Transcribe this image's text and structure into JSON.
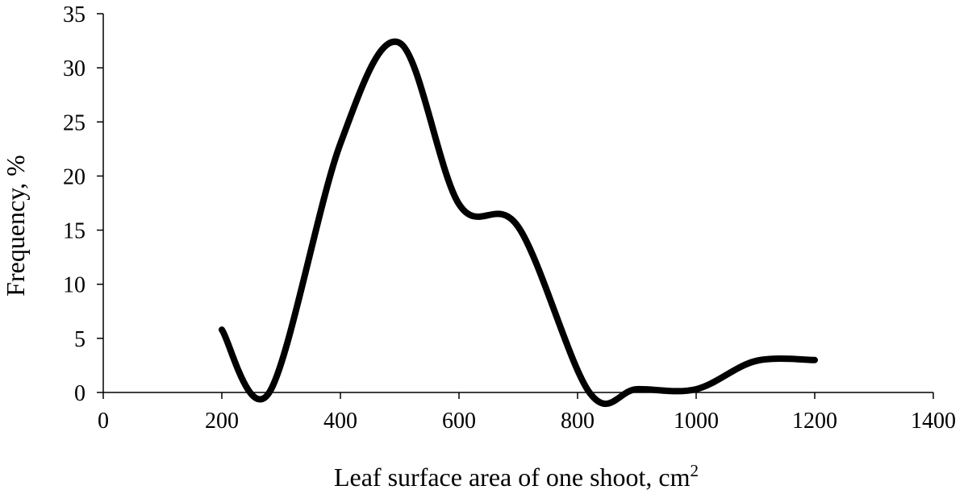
{
  "chart_data": {
    "type": "line",
    "smooth": true,
    "title": "",
    "xlabel": "Leaf surface area of one shoot, cm",
    "xlabel_superscript": "2",
    "ylabel": "Frequency, %",
    "xlim": [
      0,
      1400
    ],
    "ylim": [
      0,
      35
    ],
    "xticks": [
      0,
      200,
      400,
      600,
      800,
      1000,
      1200,
      1400
    ],
    "yticks": [
      0,
      5,
      10,
      15,
      20,
      25,
      30,
      35
    ],
    "grid": false,
    "legend": "none",
    "series": [
      {
        "color": "#000000",
        "x": [
          200,
          280,
          400,
          500,
          600,
          700,
          820,
          900,
          1000,
          1100,
          1200
        ],
        "y": [
          5.8,
          0.0,
          23.0,
          32.3,
          17.4,
          15.3,
          0.0,
          0.3,
          0.3,
          2.9,
          3.0
        ]
      }
    ]
  }
}
